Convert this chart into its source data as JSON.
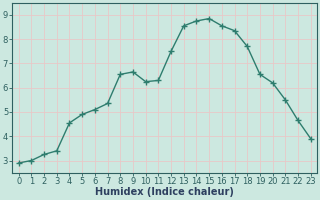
{
  "x": [
    0,
    1,
    2,
    3,
    4,
    5,
    6,
    7,
    8,
    9,
    10,
    11,
    12,
    13,
    14,
    15,
    16,
    17,
    18,
    19,
    20,
    21,
    22,
    23
  ],
  "y": [
    2.9,
    3.0,
    3.25,
    3.4,
    4.55,
    4.9,
    5.1,
    5.35,
    6.55,
    6.65,
    6.25,
    6.3,
    7.5,
    8.55,
    8.75,
    8.85,
    8.55,
    8.35,
    7.7,
    6.55,
    6.2,
    5.5,
    4.65,
    3.9
  ],
  "line_color": "#2e7d6e",
  "marker": "+",
  "marker_size": 4,
  "marker_edge_width": 1.0,
  "bg_color": "#cce8e0",
  "grid_color": "#e8c8c8",
  "xlabel": "Humidex (Indice chaleur)",
  "ylabel": "",
  "xlim": [
    -0.5,
    23.5
  ],
  "ylim": [
    2.5,
    9.5
  ],
  "yticks": [
    3,
    4,
    5,
    6,
    7,
    8,
    9
  ],
  "xticks": [
    0,
    1,
    2,
    3,
    4,
    5,
    6,
    7,
    8,
    9,
    10,
    11,
    12,
    13,
    14,
    15,
    16,
    17,
    18,
    19,
    20,
    21,
    22,
    23
  ],
  "tick_fontsize": 6,
  "xlabel_fontsize": 7,
  "line_width": 1.0,
  "tick_color": "#2e6060",
  "xlabel_color": "#2e4060"
}
